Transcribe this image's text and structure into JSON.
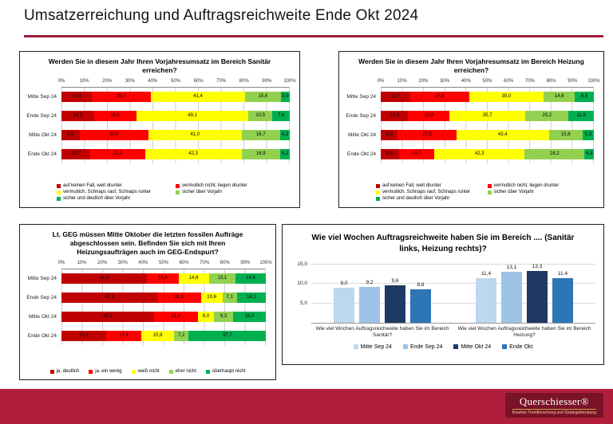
{
  "page": {
    "title": "Umsatzerreichung und Auftragsreichweite Ende Okt 2024"
  },
  "colors": {
    "rule": "#a01c3c",
    "footer_band": "#b01e3c",
    "logo_bg": "#7a1228"
  },
  "chart_data": [
    {
      "id": "sanitaer",
      "type": "stacked-bar-horizontal",
      "title": "Werden Sie in diesem Jahr Ihren Vorjahresumsatz im Bereich Sanitär erreichen?",
      "x_range": [
        0,
        100
      ],
      "x_ticks": [
        "0%",
        "10%",
        "20%",
        "30%",
        "40%",
        "50%",
        "60%",
        "70%",
        "80%",
        "90%",
        "100%"
      ],
      "categories": [
        "Mitte Sep 24",
        "Ende Sep 24",
        "Mitte Okt 24",
        "Ende Okt 24"
      ],
      "legend_layout": "two-column",
      "series": [
        {
          "name": "auf keinen Fall, weit drunter",
          "color": "#c00000",
          "values": [
            13.4,
            14.2,
            8.0,
            12.7
          ]
        },
        {
          "name": "vermutlich nicht, liegen drunter",
          "color": "#ff0000",
          "values": [
            25.7,
            18.6,
            30.0,
            23.9
          ]
        },
        {
          "name": "vermutlich, Schnaps rauf, Schnaps runter",
          "color": "#ffff00",
          "values": [
            41.4,
            49.1,
            41.0,
            42.3
          ]
        },
        {
          "name": "sicher über Vorjahr",
          "color": "#92d050",
          "values": [
            15.6,
            10.5,
            16.7,
            16.9
          ]
        },
        {
          "name": "sicher und deutlich über Vorjahr",
          "color": "#00b050",
          "values": [
            3.9,
            7.6,
            4.3,
            4.2
          ]
        }
      ]
    },
    {
      "id": "heizung",
      "type": "stacked-bar-horizontal",
      "title": "Werden Sie in diesem Jahr Ihren Vorjahresumsatz im Bereich Heizung erreichen?",
      "x_range": [
        0,
        100
      ],
      "x_ticks": [
        "0%",
        "10%",
        "20%",
        "30%",
        "40%",
        "50%",
        "60%",
        "70%",
        "80%",
        "90%",
        "100%"
      ],
      "categories": [
        "Mitte Sep 24",
        "Ende Sep 24",
        "Mitte Okt 24",
        "Ende Okt 24"
      ],
      "legend_layout": "two-column",
      "series": [
        {
          "name": "auf keinen Fall, weit drunter",
          "color": "#c00000",
          "values": [
            13.7,
            12.9,
            8.0,
            8.5
          ]
        },
        {
          "name": "vermutlich nicht, liegen drunter",
          "color": "#ff0000",
          "values": [
            27.8,
            19.3,
            27.5,
            16.7
          ]
        },
        {
          "name": "vermutlich, Schnaps rauf, Schnaps runter",
          "color": "#ffff00",
          "values": [
            35.0,
            35.7,
            43.4,
            42.3
          ]
        },
        {
          "name": "sicher über Vorjahr",
          "color": "#92d050",
          "values": [
            14.6,
            20.2,
            15.8,
            28.2
          ]
        },
        {
          "name": "sicher und deutlich über Vorjahr",
          "color": "#00b050",
          "values": [
            8.9,
            11.9,
            5.3,
            4.3
          ]
        }
      ]
    },
    {
      "id": "geg",
      "type": "stacked-bar-horizontal",
      "title": "Lt. GEG müssen Mitte Oktober die letzten fossilen Aufträge abgeschlossen sein. Befinden Sie sich mit Ihren Heizungsaufträgen auch im GEG-Endspurt?",
      "x_range": [
        0,
        100
      ],
      "x_ticks": [
        "0%",
        "10%",
        "20%",
        "30%",
        "40%",
        "50%",
        "60%",
        "70%",
        "80%",
        "90%",
        "100%"
      ],
      "categories": [
        "Mitte Sep 24",
        "Ende Sep 24",
        "Mitte Okt 24",
        "Ende Okt 24"
      ],
      "legend_layout": "row",
      "series": [
        {
          "name": "ja, deutlich",
          "color": "#c00000",
          "values": [
            41.9,
            47.1,
            45.3,
            21.8
          ]
        },
        {
          "name": "ja, ein wenig",
          "color": "#ff0000",
          "values": [
            15.4,
            21.1,
            21.4,
            17.4
          ]
        },
        {
          "name": "weiß nicht",
          "color": "#ffff00",
          "values": [
            14.8,
            10.6,
            8.0,
            15.9
          ]
        },
        {
          "name": "eher nicht",
          "color": "#92d050",
          "values": [
            13.1,
            7.1,
            9.3,
            7.2
          ]
        },
        {
          "name": "überhaupt nicht",
          "color": "#00b050",
          "values": [
            14.8,
            14.1,
            16.0,
            37.7
          ]
        }
      ]
    },
    {
      "id": "weeks",
      "type": "bar",
      "title": "Wie viel Wochen Auftragsreichweite haben Sie im Bereich .... (Sanitär links, Heizung rechts)?",
      "categories": [
        "Wie viel Wochen Auftragsreichweite haben Sie im Bereich Sanitär?",
        "Wie viel Wochen Auftragsreichweite haben Sie im Bereich Heizung?"
      ],
      "y_ticks": [
        15,
        10,
        5
      ],
      "y_max": 16,
      "grid": true,
      "legend_position": "bottom",
      "series": [
        {
          "name": "Mitte Sep 24",
          "color": "#bdd7ee",
          "values": [
            9.0,
            11.4
          ]
        },
        {
          "name": "Ende Sep 24",
          "color": "#9dc3e6",
          "values": [
            9.2,
            13.1
          ]
        },
        {
          "name": "Mitte Okt 24",
          "color": "#1f3864",
          "values": [
            9.6,
            13.3
          ]
        },
        {
          "name": "Ende Okt",
          "color": "#2e75b6",
          "values": [
            8.6,
            11.4
          ]
        }
      ]
    }
  ],
  "footer": {
    "logo_name": "Querschiesser®",
    "logo_tagline": "Kreative Trendforschung und Strategieberatung"
  }
}
